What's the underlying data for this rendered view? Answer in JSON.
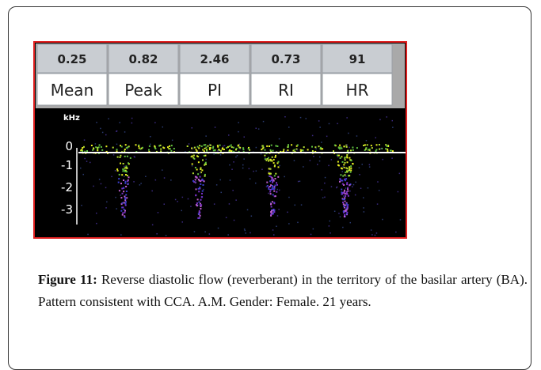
{
  "figure": {
    "table": {
      "values": [
        0.25,
        0.82,
        2.46,
        0.73,
        91
      ],
      "labels": [
        "Mean",
        "Peak",
        "PI",
        "RI",
        "HR"
      ]
    },
    "axis": {
      "unit": "kHz",
      "ticks": [
        0,
        -1,
        -2,
        -3
      ]
    }
  },
  "caption": {
    "label": "Figure 11:",
    "text": "Reverse diastolic flow (reverberant) in the territory of the basilar artery (BA). Pattern consistent with CCA. A.M. Gender: Female. 21 years."
  }
}
